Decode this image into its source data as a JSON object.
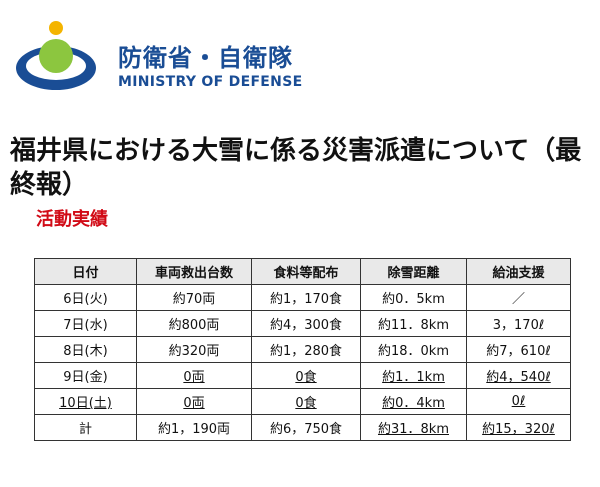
{
  "header": {
    "org_jp": "防衛省・自衛隊",
    "org_en": "MINISTRY OF DEFENSE",
    "colors": {
      "brand_blue": "#1a4d95",
      "logo_green": "#8cc63f",
      "logo_yellow": "#f4b400"
    }
  },
  "title": "福井県における大雪に係る災害派遣について（最終報）",
  "subtitle": "活動実績",
  "table": {
    "headers": [
      "日付",
      "車両救出台数",
      "食料等配布",
      "除雪距離",
      "給油支援"
    ],
    "rows": [
      [
        "6日(火)",
        "約70両",
        "約1，170食",
        "約0．5km",
        "／"
      ],
      [
        "7日(水)",
        "約800両",
        "約4，300食",
        "約11．8km",
        "3，170ℓ"
      ],
      [
        "8日(木)",
        "約320両",
        "約1，280食",
        "約18．0km",
        "約7，610ℓ"
      ],
      [
        "9日(金)",
        "0両",
        "0食",
        "約1．1km",
        "約4，540ℓ"
      ],
      [
        "10日(土)",
        "0両",
        "0食",
        "約0．4km",
        "0ℓ"
      ],
      [
        "計",
        "約1，190両",
        "約6，750食",
        "約31．8km",
        "約15，320ℓ"
      ]
    ]
  }
}
